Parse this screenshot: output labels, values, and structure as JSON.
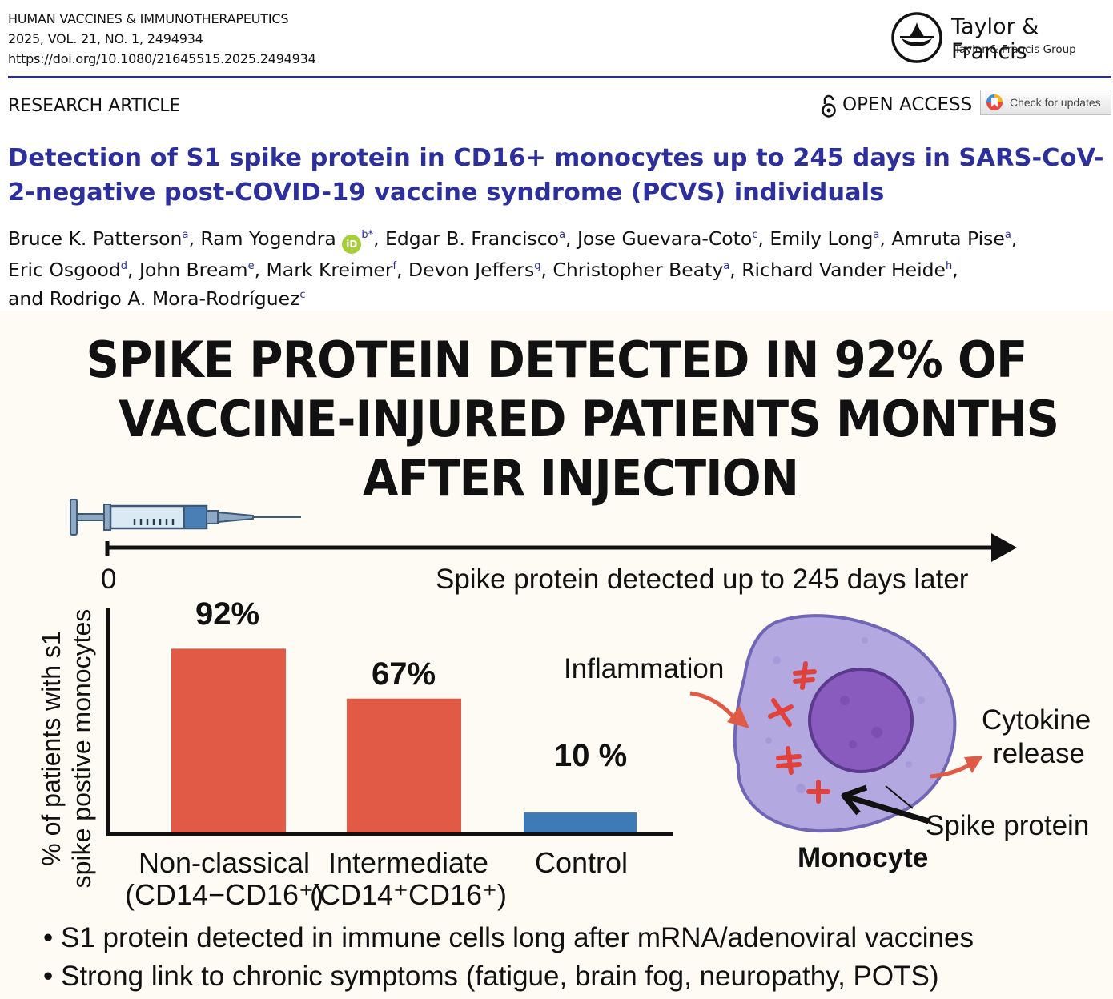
{
  "journal": {
    "name": "HUMAN VACCINES & IMMUNOTHERAPEUTICS",
    "volume": "2025, VOL. 21, NO. 1, 2494934",
    "doi": "https://doi.org/10.1080/21645515.2025.2494934"
  },
  "publisher": {
    "name": "Taylor & Francis",
    "group": "Taylor & Francis Group"
  },
  "article_type": "RESEARCH ARTICLE",
  "open_access": "OPEN ACCESS",
  "check_updates": "Check for updates",
  "paper_title": {
    "line1": "Detection of S1 spike protein in CD16+ monocytes up to 245 days in SARS-CoV-",
    "line2": "2-negative post-COVID-19 vaccine syndrome (PCVS) individuals"
  },
  "authors": [
    {
      "name": "Bruce K. Patterson",
      "aff": "a"
    },
    {
      "name": "Ram Yogendra",
      "aff": "b*"
    },
    {
      "name": "Edgar B. Francisco",
      "aff": "a"
    },
    {
      "name": "Jose Guevara-Coto",
      "aff": "c"
    },
    {
      "name": "Emily Long",
      "aff": "a"
    },
    {
      "name": "Amruta Pise",
      "aff": "a"
    },
    {
      "name": "Eric Osgood",
      "aff": "d"
    },
    {
      "name": "John Bream",
      "aff": "e"
    },
    {
      "name": "Mark Kreimer",
      "aff": "f"
    },
    {
      "name": "Devon Jeffers",
      "aff": "g"
    },
    {
      "name": "Christopher Beaty",
      "aff": "a"
    },
    {
      "name": "Richard Vander Heide",
      "aff": "h"
    },
    {
      "name": "Rodrigo A. Mora-Rodríguez",
      "aff": "c"
    }
  ],
  "author_conj": "and",
  "headline": {
    "line1": "SPIKE PROTEIN DETECTED IN 92% OF",
    "line2": "VACCINE-INJURED PATIENTS MONTHS",
    "line3": "AFTER INJECTION"
  },
  "timeline": {
    "start": "0",
    "label": "Spike protein detected up to 245 days later"
  },
  "chart_data": {
    "type": "bar",
    "categories": [
      "Non-classical (CD14−CD16⁺)",
      "Intermediate (CD14⁺CD16⁺)",
      "Control"
    ],
    "values": [
      92,
      67,
      10
    ],
    "value_labels": [
      "92%",
      "67%",
      "10 %"
    ],
    "colors": [
      "#e05a45",
      "#e05a45",
      "#3e7bb6"
    ],
    "ylabel": "% of patients with s1 spike postive monocytes",
    "ylim": [
      0,
      100
    ]
  },
  "categories_display": [
    {
      "line1": "Non-classical",
      "line2": "(CD14−CD16⁺)"
    },
    {
      "line1": "Intermediate",
      "line2": "(CD14⁺CD16⁺)"
    },
    {
      "line1": "Control",
      "line2": ""
    }
  ],
  "ylabel_display": {
    "line1": "% of patients with s1",
    "line2": "spike postive monocytes"
  },
  "cell_diagram": {
    "inflammation": "Inflammation",
    "cytokine_line1": "Cytokine",
    "cytokine_line2": "release",
    "spike": "Spike protein",
    "monocyte": "Monocyte"
  },
  "bullets": [
    "S1 protein detected in immune cells long after mRNA/adenoviral vaccines",
    "Strong link to chronic symptoms (fatigue, brain fog, neuropathy, POTS)"
  ]
}
